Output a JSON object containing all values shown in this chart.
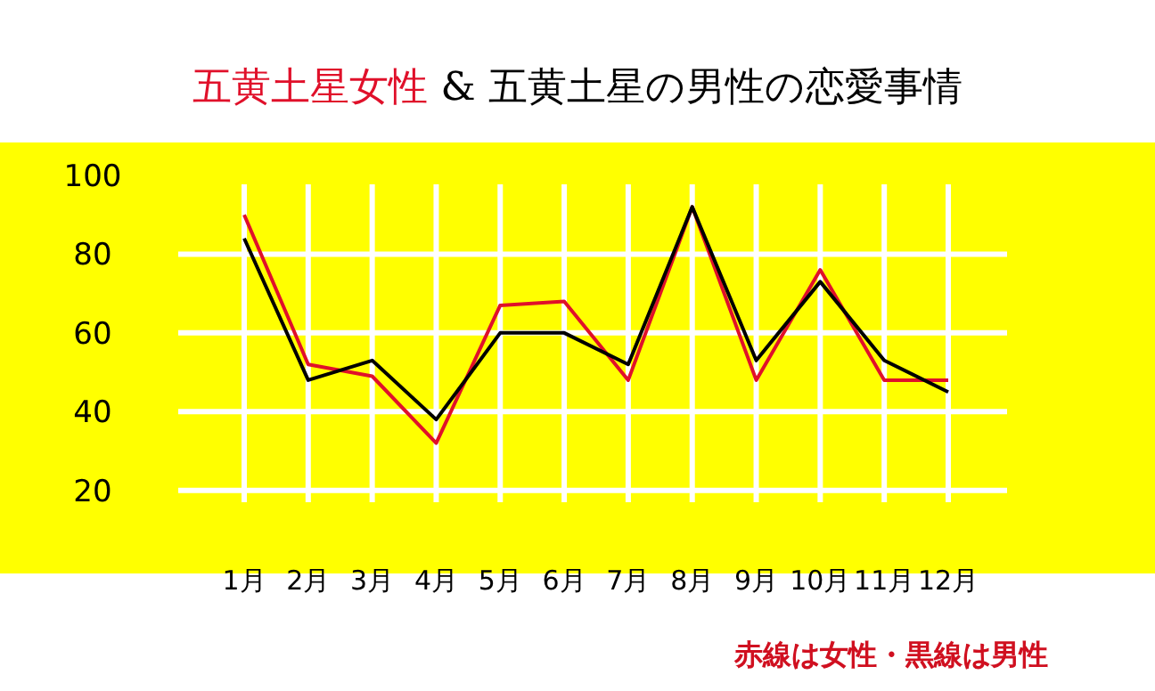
{
  "chart_data": {
    "type": "line",
    "title": "五黄土星女性 & 五黄土星の男性の恋愛事情",
    "categories": [
      "1月",
      "2月",
      "3月",
      "4月",
      "5月",
      "6月",
      "7月",
      "8月",
      "9月",
      "10月",
      "11月",
      "12月"
    ],
    "series": [
      {
        "color": "#e0102a",
        "values": [
          90,
          52,
          49,
          32,
          67,
          68,
          48,
          92,
          48,
          76,
          48,
          48
        ]
      },
      {
        "color": "#000000",
        "values": [
          84,
          48,
          53,
          38,
          60,
          60,
          52,
          92,
          53,
          73,
          53,
          45
        ]
      }
    ],
    "ylim": [
      17,
      100
    ],
    "yticks": [
      20,
      40,
      60,
      80,
      100
    ],
    "grid": true,
    "marker": "none",
    "line_style": "solid",
    "annotations": [
      "赤線は女性・黒線は男性"
    ]
  }
}
